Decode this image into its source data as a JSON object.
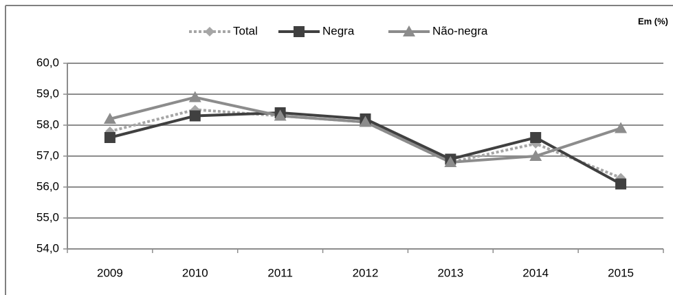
{
  "chart_data": {
    "type": "line",
    "note": "Em (%)",
    "categories": [
      "2009",
      "2010",
      "2011",
      "2012",
      "2013",
      "2014",
      "2015"
    ],
    "series": [
      {
        "name": "Total",
        "color": "#a6a6a6",
        "marker": "diamond",
        "dash": "dotted",
        "values": [
          57.8,
          58.5,
          58.3,
          58.1,
          56.8,
          57.4,
          56.3
        ]
      },
      {
        "name": "Negra",
        "color": "#404040",
        "marker": "square",
        "dash": "solid",
        "values": [
          57.6,
          58.3,
          58.4,
          58.2,
          56.9,
          57.6,
          56.1
        ]
      },
      {
        "name": "Não-negra",
        "color": "#8c8c8c",
        "marker": "triangle",
        "dash": "solid",
        "values": [
          58.2,
          58.9,
          58.3,
          58.1,
          56.8,
          57.0,
          57.9
        ]
      }
    ],
    "ylim": [
      54,
      60
    ],
    "yticks": [
      {
        "value": 54,
        "label": "54,0"
      },
      {
        "value": 55,
        "label": "55,0"
      },
      {
        "value": 56,
        "label": "56,0"
      },
      {
        "value": 57,
        "label": "57,0"
      },
      {
        "value": 58,
        "label": "58,0"
      },
      {
        "value": 59,
        "label": "59,0"
      },
      {
        "value": 60,
        "label": "60,0"
      }
    ],
    "grid": true,
    "legend": "top"
  }
}
